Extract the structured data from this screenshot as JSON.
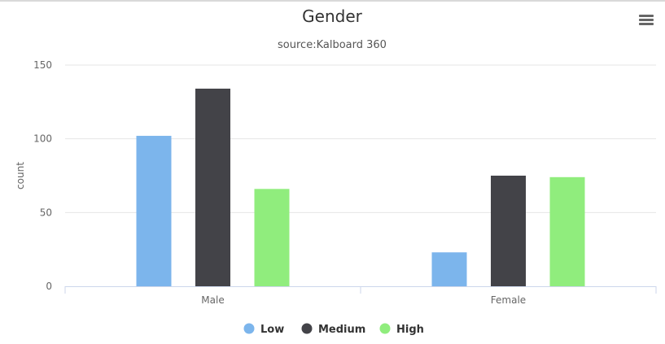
{
  "chart_data": {
    "type": "bar",
    "title": "Gender",
    "subtitle": "source:Kalboard 360",
    "xlabel": "",
    "ylabel": "count",
    "categories": [
      "Male",
      "Female"
    ],
    "series": [
      {
        "name": "Low",
        "values": [
          102,
          23
        ],
        "color": "#7cb5ec"
      },
      {
        "name": "Medium",
        "values": [
          134,
          75
        ],
        "color": "#434348"
      },
      {
        "name": "High",
        "values": [
          66,
          74
        ],
        "color": "#90ed7d"
      }
    ],
    "ylim": [
      0,
      150
    ],
    "yticks": [
      0,
      50,
      100,
      150
    ],
    "grid": true,
    "legend_position": "bottom-center"
  },
  "menu": {
    "icon": "hamburger-menu-icon"
  }
}
